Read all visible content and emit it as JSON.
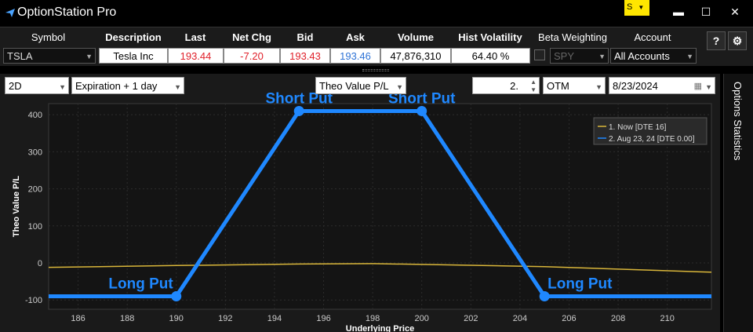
{
  "window": {
    "title": "OptionStation Pro",
    "symbol_link": "S",
    "minimize": "▬",
    "maximize": "☐",
    "close": "✕"
  },
  "quote": {
    "headers": {
      "symbol": "Symbol",
      "description": "Description",
      "last": "Last",
      "net_chg": "Net Chg",
      "bid": "Bid",
      "ask": "Ask",
      "volume": "Volume",
      "hist_vol": "Hist Volatility",
      "beta": "Beta Weighting",
      "account": "Account"
    },
    "values": {
      "symbol": "TSLA",
      "description": "Tesla Inc",
      "last": "193.44",
      "net_chg": "-7.20",
      "bid": "193.43",
      "ask": "193.46",
      "volume": "47,876,310",
      "hist_vol": "64.40 %",
      "beta_symbol": "SPY",
      "account": "All Accounts"
    },
    "help_label": "?",
    "settings_icon": "gear-icon"
  },
  "controls": {
    "view": "2D",
    "time": "Expiration + 1 day",
    "metric": "Theo Value P/L",
    "strikes": "2.",
    "moneyness": "OTM",
    "date": "8/23/2024"
  },
  "side_tab": "Options Statistics",
  "colors": {
    "accent": "#1f88ff",
    "now_line": "#d9b63a",
    "red": "#e0202a",
    "blue": "#2e73d6"
  },
  "chart_data": {
    "type": "line",
    "xlabel": "Underlying Price",
    "ylabel": "Theo Value P/L",
    "xlim": [
      184.8,
      211.8
    ],
    "ylim": [
      -125,
      430
    ],
    "x_ticks": [
      186,
      188,
      190,
      192,
      194,
      196,
      198,
      200,
      202,
      204,
      206,
      208,
      210
    ],
    "y_ticks": [
      -100,
      0,
      100,
      200,
      300,
      400
    ],
    "legend_position": "top-right",
    "series": [
      {
        "name": "1. Now [DTE 16]",
        "x": [
          184.8,
          190,
          195,
          198,
          200,
          205,
          211.8
        ],
        "y": [
          -12,
          -7,
          -3,
          -2,
          -4,
          -10,
          -25
        ]
      },
      {
        "name": "2. Aug 23, 24 [DTE 0.00]",
        "x": [
          184.8,
          190,
          195,
          200,
          205,
          211.8
        ],
        "y": [
          -90,
          -90,
          410,
          410,
          -90,
          -90
        ]
      }
    ],
    "annotations": [
      {
        "label": "Long Put",
        "x": 190,
        "y": -90
      },
      {
        "label": "Short Put",
        "x": 195,
        "y": 410
      },
      {
        "label": "Short Put",
        "x": 200,
        "y": 410
      },
      {
        "label": "Long Put",
        "x": 205,
        "y": -90
      }
    ]
  }
}
